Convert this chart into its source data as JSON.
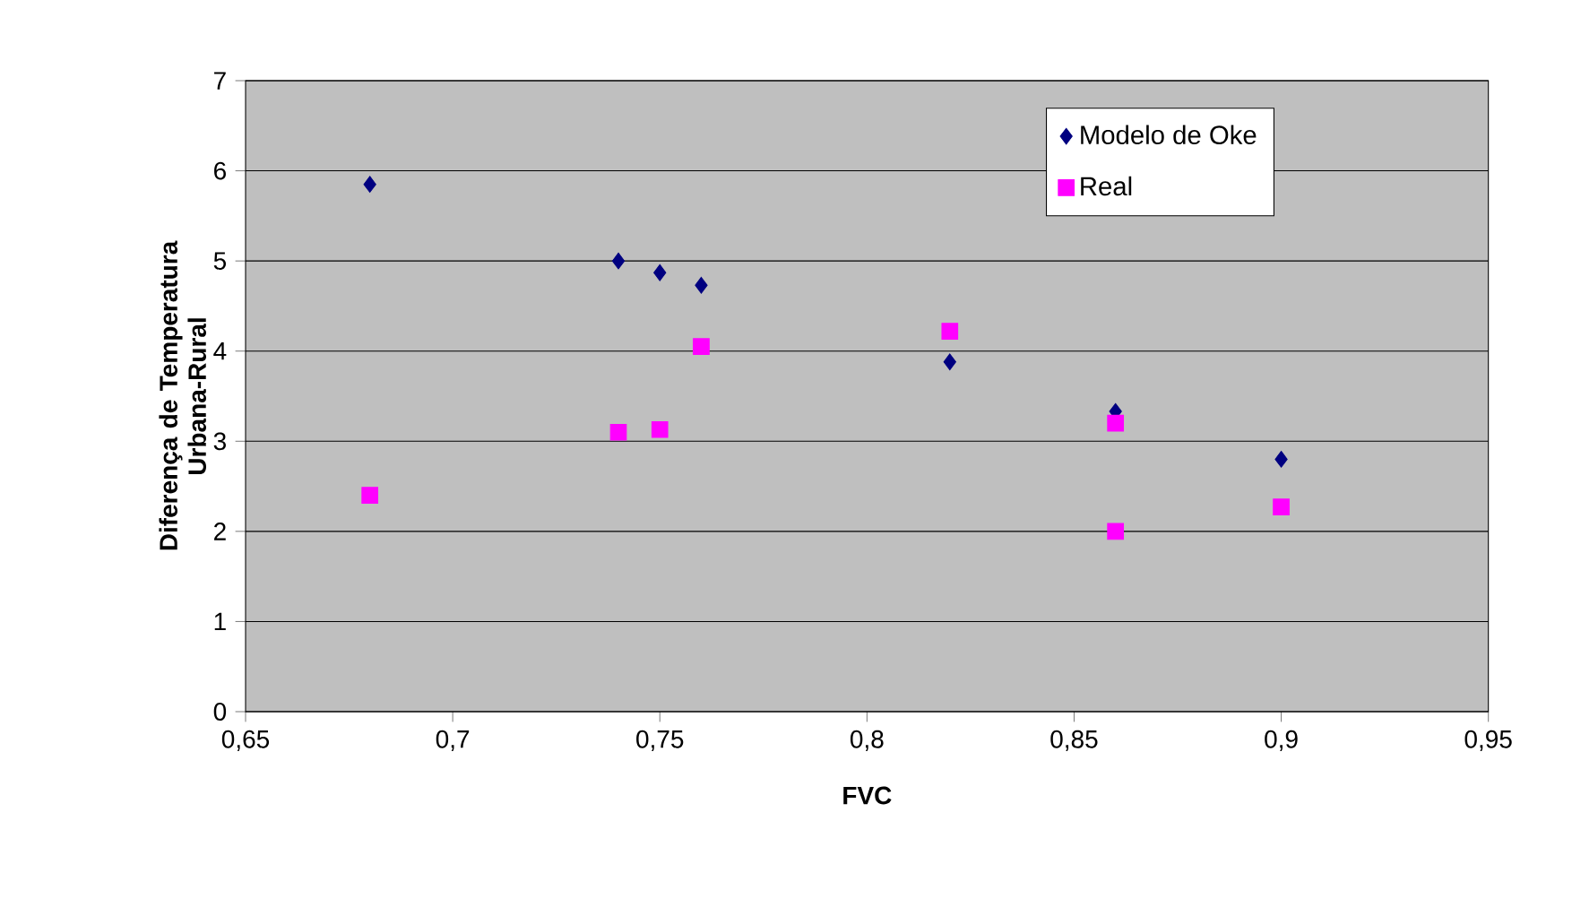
{
  "chart_data": {
    "type": "scatter",
    "xlabel": "FVC",
    "ylabel": "Diferença de Temperatura Urbana-Rural",
    "series": [
      {
        "name": "Modelo de Oke",
        "color": "#000080",
        "marker": "diamond",
        "x": [
          0.68,
          0.74,
          0.75,
          0.76,
          0.82,
          0.86,
          0.9
        ],
        "values": [
          5.85,
          5.0,
          4.87,
          4.73,
          3.88,
          3.33,
          2.8
        ]
      },
      {
        "name": "Real",
        "color": "#ff00ff",
        "marker": "square",
        "x": [
          0.68,
          0.74,
          0.75,
          0.76,
          0.82,
          0.86,
          0.86,
          0.9
        ],
        "values": [
          2.4,
          3.1,
          3.13,
          4.05,
          4.22,
          3.2,
          2.0,
          2.27
        ]
      }
    ],
    "xlim": [
      0.65,
      0.95
    ],
    "xticks": [
      {
        "value": 0.65,
        "label": "0,65"
      },
      {
        "value": 0.7,
        "label": "0,7"
      },
      {
        "value": 0.75,
        "label": "0,75"
      },
      {
        "value": 0.8,
        "label": "0,8"
      },
      {
        "value": 0.85,
        "label": "0,85"
      },
      {
        "value": 0.9,
        "label": "0,9"
      },
      {
        "value": 0.95,
        "label": "0,95"
      }
    ],
    "ylim": [
      0,
      7
    ],
    "yticks": [
      0,
      1,
      2,
      3,
      4,
      5,
      6,
      7
    ],
    "grid": "y",
    "legend": "top right"
  }
}
